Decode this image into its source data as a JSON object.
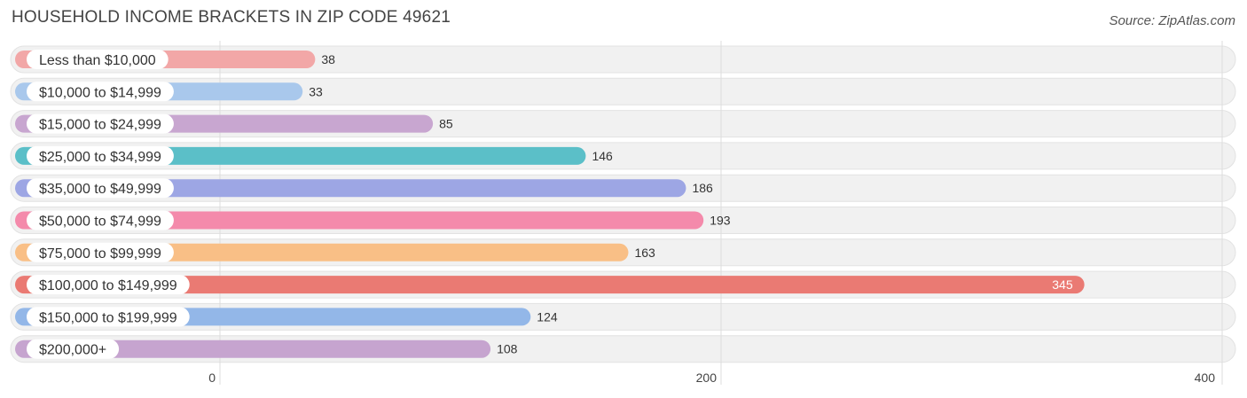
{
  "header": {
    "title": "HOUSEHOLD INCOME BRACKETS IN ZIP CODE 49621",
    "source": "Source: ZipAtlas.com"
  },
  "chart_data": {
    "type": "bar",
    "orientation": "horizontal",
    "title": "HOUSEHOLD INCOME BRACKETS IN ZIP CODE 49621",
    "categories": [
      "Less than $10,000",
      "$10,000 to $14,999",
      "$15,000 to $24,999",
      "$25,000 to $34,999",
      "$35,000 to $49,999",
      "$50,000 to $74,999",
      "$75,000 to $99,999",
      "$100,000 to $149,999",
      "$150,000 to $199,999",
      "$200,000+"
    ],
    "values": [
      38,
      33,
      85,
      146,
      186,
      193,
      163,
      345,
      124,
      108
    ],
    "colors": [
      "#f2a7a7",
      "#a9c8ec",
      "#c8a6d0",
      "#5bbfc8",
      "#9da6e4",
      "#f48aab",
      "#f9bf86",
      "#ea7a73",
      "#93b7e8",
      "#c6a4cf"
    ],
    "xlim": [
      0,
      400
    ],
    "xticks": [
      0,
      200,
      400
    ],
    "grid": true,
    "xlabel": "",
    "ylabel": ""
  }
}
